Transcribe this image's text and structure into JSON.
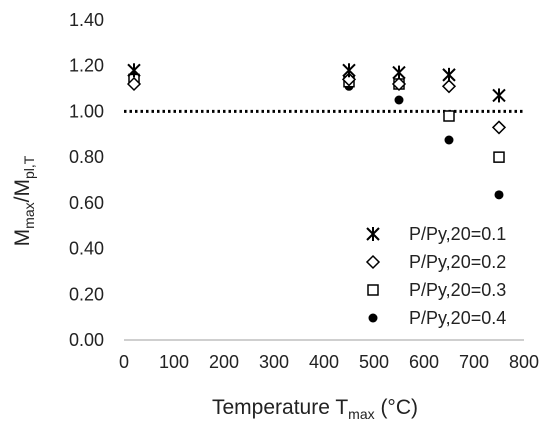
{
  "chart_data": {
    "type": "scatter",
    "xlabel": {
      "main": "Temperature T",
      "sub": "max",
      "tail": " (°C)"
    },
    "ylabel": {
      "main": "M",
      "sub1": "max",
      "mid": "/M",
      "sub2": "pl,T"
    },
    "xlim": [
      0,
      800
    ],
    "ylim": [
      0,
      1.4
    ],
    "xticks": [
      "0",
      "100",
      "200",
      "300",
      "400",
      "500",
      "600",
      "700",
      "800"
    ],
    "yticks": [
      "0.00",
      "0.20",
      "0.40",
      "0.60",
      "0.80",
      "1.00",
      "1.20",
      "1.40"
    ],
    "grid": false,
    "legend_position": "bottom-right",
    "reference_line": {
      "y": 1.0,
      "style": "dotted"
    },
    "series": [
      {
        "name": "P/Py,20=0.1",
        "marker": "asterisk",
        "x": [
          20,
          450,
          550,
          650,
          750
        ],
        "y": [
          1.18,
          1.18,
          1.17,
          1.16,
          1.07
        ]
      },
      {
        "name": "P/Py,20=0.2",
        "marker": "diamond-open",
        "x": [
          20,
          450,
          550,
          650,
          750
        ],
        "y": [
          1.12,
          1.14,
          1.12,
          1.11,
          0.93
        ]
      },
      {
        "name": "P/Py,20=0.3",
        "marker": "square-open",
        "x": [
          20,
          450,
          550,
          650,
          750
        ],
        "y": [
          1.14,
          1.13,
          1.12,
          0.98,
          0.8
        ]
      },
      {
        "name": "P/Py,20=0.4",
        "marker": "circle-filled",
        "x": [
          20,
          450,
          550,
          650,
          750
        ],
        "y": [
          1.15,
          1.11,
          1.05,
          0.875,
          0.635
        ]
      }
    ]
  }
}
